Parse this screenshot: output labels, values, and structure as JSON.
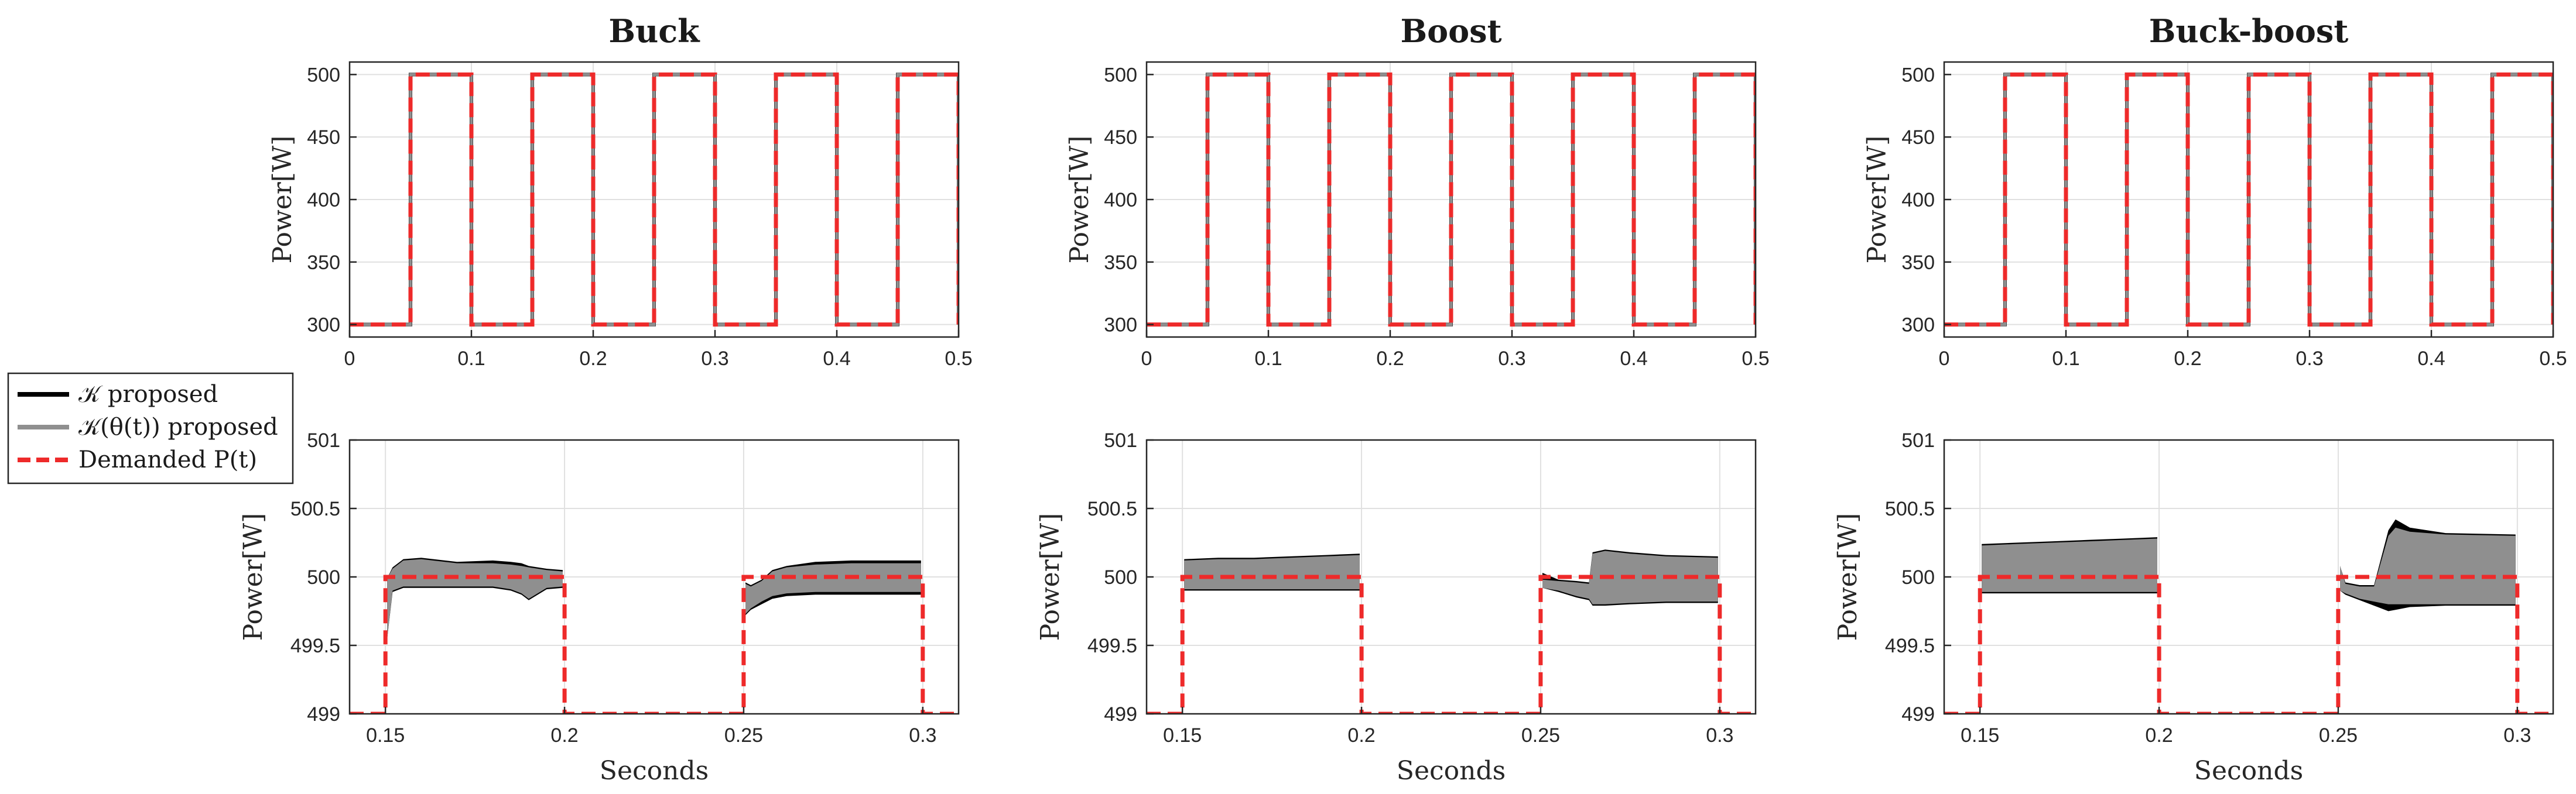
{
  "colors": {
    "measured": "#000000",
    "adaptive": "#8f8f8f",
    "demand": "#ee2a2a",
    "grid": "#e0e0e0",
    "axis": "#262626"
  },
  "legend": {
    "entries": [
      {
        "label": "𝒦 proposed",
        "color": "#000000",
        "style": "solid"
      },
      {
        "label": "𝒦(θ(t)) proposed",
        "color": "#8f8f8f",
        "style": "solid"
      },
      {
        "label": "Demanded P(t)",
        "color": "#ee2a2a",
        "style": "dashed"
      }
    ]
  },
  "chart_data": [
    {
      "type": "line",
      "panel": "top",
      "column": 0,
      "title": "Buck",
      "xlabel": "",
      "ylabel": "Power[W]",
      "xlim": [
        0,
        0.5
      ],
      "ylim": [
        290,
        510
      ],
      "xticks": [
        0,
        0.1,
        0.2,
        0.3,
        0.4,
        0.5
      ],
      "xtick_labels": [
        "0",
        "0.1",
        "0.2",
        "0.3",
        "0.4",
        "0.5"
      ],
      "yticks": [
        300,
        350,
        400,
        450,
        500
      ],
      "ytick_labels": [
        "300",
        "350",
        "400",
        "450",
        "500"
      ],
      "square_wave": {
        "low": 300,
        "high": 500,
        "period": 0.1,
        "rise": 0.05
      }
    },
    {
      "type": "line",
      "panel": "top",
      "column": 1,
      "title": "Boost",
      "xlabel": "",
      "ylabel": "Power[W]",
      "xlim": [
        0,
        0.5
      ],
      "ylim": [
        290,
        510
      ],
      "xticks": [
        0,
        0.1,
        0.2,
        0.3,
        0.4,
        0.5
      ],
      "xtick_labels": [
        "0",
        "0.1",
        "0.2",
        "0.3",
        "0.4",
        "0.5"
      ],
      "yticks": [
        300,
        350,
        400,
        450,
        500
      ],
      "ytick_labels": [
        "300",
        "350",
        "400",
        "450",
        "500"
      ],
      "square_wave": {
        "low": 300,
        "high": 500,
        "period": 0.1,
        "rise": 0.05
      }
    },
    {
      "type": "line",
      "panel": "top",
      "column": 2,
      "title": "Buck-boost",
      "xlabel": "",
      "ylabel": "Power[W]",
      "xlim": [
        0,
        0.5
      ],
      "ylim": [
        290,
        510
      ],
      "xticks": [
        0,
        0.1,
        0.2,
        0.3,
        0.4,
        0.5
      ],
      "xtick_labels": [
        "0",
        "0.1",
        "0.2",
        "0.3",
        "0.4",
        "0.5"
      ],
      "yticks": [
        300,
        350,
        400,
        450,
        500
      ],
      "ytick_labels": [
        "300",
        "350",
        "400",
        "450",
        "500"
      ],
      "square_wave": {
        "low": 300,
        "high": 500,
        "period": 0.1,
        "rise": 0.05
      }
    },
    {
      "type": "line",
      "panel": "bottom",
      "column": 0,
      "title": "",
      "xlabel": "Seconds",
      "ylabel": "Power[W]",
      "xlim": [
        0.14,
        0.31
      ],
      "ylim": [
        499,
        501
      ],
      "xticks": [
        0.15,
        0.2,
        0.25,
        0.3
      ],
      "xtick_labels": [
        "0.15",
        "0.2",
        "0.25",
        "0.3"
      ],
      "yticks": [
        499,
        499.5,
        500,
        500.5,
        501
      ],
      "ytick_labels": [
        "499",
        "499.5",
        "500",
        "500.5",
        "501"
      ],
      "demand": {
        "x": [
          0.14,
          0.15,
          0.15,
          0.2,
          0.2,
          0.25,
          0.25,
          0.3,
          0.3,
          0.31
        ],
        "y": [
          499,
          499,
          500,
          500,
          499,
          499,
          500,
          500,
          499,
          499
        ]
      },
      "segments": [
        {
          "x": [
            0.1505,
            0.152,
            0.155,
            0.16,
            0.17,
            0.18,
            0.185,
            0.188,
            0.19,
            0.195,
            0.1995
          ],
          "hi": [
            499.99,
            500.06,
            500.12,
            500.13,
            500.1,
            500.1,
            500.09,
            500.08,
            500.07,
            500.05,
            500.04
          ],
          "lo": [
            499.55,
            499.9,
            499.93,
            499.93,
            499.93,
            499.93,
            499.91,
            499.88,
            499.84,
            499.92,
            499.93
          ],
          "black_hi": [
            499.99,
            500.07,
            500.13,
            500.14,
            500.11,
            500.12,
            500.11,
            500.1,
            500.08,
            500.06,
            500.05
          ],
          "black_lo": [
            499.55,
            499.89,
            499.92,
            499.92,
            499.92,
            499.92,
            499.9,
            499.87,
            499.83,
            499.91,
            499.92
          ]
        },
        {
          "x": [
            0.2505,
            0.252,
            0.255,
            0.258,
            0.262,
            0.27,
            0.28,
            0.29,
            0.2995
          ],
          "hi": [
            499.95,
            499.93,
            499.97,
            500.04,
            500.07,
            500.09,
            500.1,
            500.1,
            500.1
          ],
          "lo": [
            499.73,
            499.77,
            499.82,
            499.86,
            499.88,
            499.89,
            499.89,
            499.89,
            499.89
          ],
          "black_hi": [
            499.96,
            499.94,
            499.98,
            500.05,
            500.08,
            500.11,
            500.12,
            500.12,
            500.12
          ],
          "black_lo": [
            499.72,
            499.76,
            499.8,
            499.84,
            499.86,
            499.87,
            499.87,
            499.87,
            499.87
          ]
        }
      ]
    },
    {
      "type": "line",
      "panel": "bottom",
      "column": 1,
      "title": "",
      "xlabel": "Seconds",
      "ylabel": "Power[W]",
      "xlim": [
        0.14,
        0.31
      ],
      "ylim": [
        499,
        501
      ],
      "xticks": [
        0.15,
        0.2,
        0.25,
        0.3
      ],
      "xtick_labels": [
        "0.15",
        "0.2",
        "0.25",
        "0.3"
      ],
      "yticks": [
        499,
        499.5,
        500,
        500.5,
        501
      ],
      "ytick_labels": [
        "499",
        "499.5",
        "500",
        "500.5",
        "501"
      ],
      "demand": {
        "x": [
          0.14,
          0.15,
          0.15,
          0.2,
          0.2,
          0.25,
          0.25,
          0.3,
          0.3,
          0.31
        ],
        "y": [
          499,
          499,
          500,
          500,
          499,
          499,
          500,
          500,
          499,
          499
        ]
      },
      "segments": [
        {
          "x": [
            0.1505,
            0.16,
            0.17,
            0.18,
            0.19,
            0.1995
          ],
          "hi": [
            500.12,
            500.13,
            500.13,
            500.14,
            500.15,
            500.16
          ],
          "lo": [
            499.91,
            499.91,
            499.91,
            499.91,
            499.91,
            499.91
          ],
          "black_hi": [
            500.13,
            500.14,
            500.14,
            500.15,
            500.16,
            500.17
          ],
          "black_lo": [
            499.9,
            499.9,
            499.9,
            499.9,
            499.9,
            499.9
          ]
        },
        {
          "x": [
            0.2505,
            0.255,
            0.26,
            0.2635,
            0.2645,
            0.268,
            0.275,
            0.285,
            0.2995
          ],
          "hi": [
            499.98,
            499.97,
            499.96,
            499.95,
            500.17,
            500.19,
            500.17,
            500.15,
            500.14
          ],
          "lo": [
            499.92,
            499.9,
            499.86,
            499.84,
            499.8,
            499.8,
            499.81,
            499.82,
            499.82
          ],
          "black_hi": [
            500.03,
            499.98,
            499.97,
            499.96,
            500.18,
            500.2,
            500.18,
            500.16,
            500.15
          ],
          "black_lo": [
            499.92,
            499.89,
            499.85,
            499.83,
            499.79,
            499.79,
            499.8,
            499.81,
            499.81
          ]
        }
      ]
    },
    {
      "type": "line",
      "panel": "bottom",
      "column": 2,
      "title": "",
      "xlabel": "Seconds",
      "ylabel": "Power[W]",
      "xlim": [
        0.14,
        0.31
      ],
      "ylim": [
        499,
        501
      ],
      "xticks": [
        0.15,
        0.2,
        0.25,
        0.3
      ],
      "xtick_labels": [
        "0.15",
        "0.2",
        "0.25",
        "0.3"
      ],
      "yticks": [
        499,
        499.5,
        500,
        500.5,
        501
      ],
      "ytick_labels": [
        "499",
        "499.5",
        "500",
        "500.5",
        "501"
      ],
      "demand": {
        "x": [
          0.14,
          0.15,
          0.15,
          0.2,
          0.2,
          0.25,
          0.25,
          0.3,
          0.3,
          0.31
        ],
        "y": [
          499,
          499,
          500,
          500,
          499,
          499,
          500,
          500,
          499,
          499
        ]
      },
      "segments": [
        {
          "x": [
            0.1505,
            0.16,
            0.17,
            0.18,
            0.19,
            0.1995
          ],
          "hi": [
            500.23,
            500.24,
            500.25,
            500.26,
            500.27,
            500.28
          ],
          "lo": [
            499.89,
            499.89,
            499.89,
            499.89,
            499.89,
            499.89
          ],
          "black_hi": [
            500.24,
            500.25,
            500.26,
            500.27,
            500.28,
            500.29
          ],
          "black_lo": [
            499.88,
            499.88,
            499.88,
            499.88,
            499.88,
            499.88
          ]
        },
        {
          "x": [
            0.2505,
            0.252,
            0.256,
            0.26,
            0.264,
            0.266,
            0.27,
            0.28,
            0.2995
          ],
          "hi": [
            500.08,
            499.95,
            499.93,
            499.93,
            500.3,
            500.36,
            500.33,
            500.31,
            500.3
          ],
          "lo": [
            499.9,
            499.88,
            499.84,
            499.82,
            499.8,
            499.8,
            499.8,
            499.8,
            499.8
          ],
          "black_hi": [
            500.08,
            499.96,
            499.94,
            499.94,
            500.34,
            500.42,
            500.36,
            500.32,
            500.31
          ],
          "black_lo": [
            499.9,
            499.87,
            499.83,
            499.79,
            499.75,
            499.76,
            499.78,
            499.79,
            499.79
          ]
        }
      ]
    }
  ]
}
